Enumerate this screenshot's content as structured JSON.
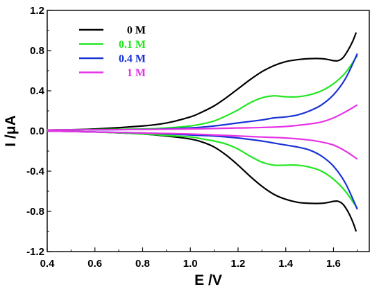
{
  "chart_data": {
    "type": "line",
    "title": "",
    "xlabel": "E /V",
    "ylabel": "I /μA",
    "xlim": [
      0.4,
      1.75
    ],
    "ylim": [
      -1.2,
      1.2
    ],
    "xticks": [
      0.4,
      0.6,
      0.8,
      1.0,
      1.2,
      1.4,
      1.6
    ],
    "xtick_labels": [
      "0.4",
      "0.6",
      "0.8",
      "1.0",
      "1.2",
      "1.4",
      "1.6"
    ],
    "yticks": [
      -1.2,
      -0.8,
      -0.4,
      0.0,
      0.4,
      0.8,
      1.2
    ],
    "ytick_labels": [
      "-1.2",
      "-0.8",
      "-0.4",
      "0.0",
      "0.4",
      "0.8",
      "1.2"
    ],
    "grid": false,
    "legend_position": "top-left",
    "series": [
      {
        "name": "0 M",
        "color": "#000000",
        "forward": [
          [
            0.4,
            0.01
          ],
          [
            0.6,
            0.02
          ],
          [
            0.8,
            0.05
          ],
          [
            0.9,
            0.08
          ],
          [
            1.0,
            0.14
          ],
          [
            1.05,
            0.19
          ],
          [
            1.1,
            0.25
          ],
          [
            1.15,
            0.33
          ],
          [
            1.2,
            0.42
          ],
          [
            1.25,
            0.51
          ],
          [
            1.3,
            0.59
          ],
          [
            1.35,
            0.65
          ],
          [
            1.4,
            0.69
          ],
          [
            1.45,
            0.71
          ],
          [
            1.5,
            0.72
          ],
          [
            1.55,
            0.72
          ],
          [
            1.58,
            0.71
          ],
          [
            1.6,
            0.7
          ],
          [
            1.62,
            0.7
          ],
          [
            1.64,
            0.73
          ],
          [
            1.66,
            0.8
          ],
          [
            1.68,
            0.89
          ],
          [
            1.695,
            0.98
          ]
        ],
        "reverse": [
          [
            1.695,
            -1.0
          ],
          [
            1.68,
            -0.9
          ],
          [
            1.66,
            -0.8
          ],
          [
            1.64,
            -0.73
          ],
          [
            1.62,
            -0.7
          ],
          [
            1.6,
            -0.7
          ],
          [
            1.58,
            -0.71
          ],
          [
            1.55,
            -0.72
          ],
          [
            1.5,
            -0.72
          ],
          [
            1.45,
            -0.71
          ],
          [
            1.4,
            -0.68
          ],
          [
            1.35,
            -0.63
          ],
          [
            1.3,
            -0.55
          ],
          [
            1.25,
            -0.45
          ],
          [
            1.2,
            -0.34
          ],
          [
            1.15,
            -0.24
          ],
          [
            1.1,
            -0.16
          ],
          [
            1.05,
            -0.11
          ],
          [
            1.0,
            -0.08
          ],
          [
            0.9,
            -0.05
          ],
          [
            0.8,
            -0.03
          ],
          [
            0.6,
            -0.01
          ],
          [
            0.4,
            0.0
          ]
        ]
      },
      {
        "name": "0.1 M",
        "color": "#22e622",
        "forward": [
          [
            0.4,
            0.01
          ],
          [
            0.6,
            0.015
          ],
          [
            0.8,
            0.02
          ],
          [
            0.9,
            0.03
          ],
          [
            1.0,
            0.05
          ],
          [
            1.05,
            0.07
          ],
          [
            1.1,
            0.1
          ],
          [
            1.15,
            0.15
          ],
          [
            1.2,
            0.21
          ],
          [
            1.25,
            0.28
          ],
          [
            1.3,
            0.33
          ],
          [
            1.35,
            0.35
          ],
          [
            1.4,
            0.34
          ],
          [
            1.45,
            0.34
          ],
          [
            1.5,
            0.36
          ],
          [
            1.55,
            0.4
          ],
          [
            1.6,
            0.47
          ],
          [
            1.65,
            0.58
          ],
          [
            1.7,
            0.75
          ]
        ],
        "reverse": [
          [
            1.7,
            -0.77
          ],
          [
            1.65,
            -0.6
          ],
          [
            1.6,
            -0.48
          ],
          [
            1.55,
            -0.4
          ],
          [
            1.5,
            -0.36
          ],
          [
            1.45,
            -0.34
          ],
          [
            1.4,
            -0.34
          ],
          [
            1.35,
            -0.34
          ],
          [
            1.3,
            -0.31
          ],
          [
            1.25,
            -0.25
          ],
          [
            1.2,
            -0.18
          ],
          [
            1.15,
            -0.13
          ],
          [
            1.1,
            -0.1
          ],
          [
            1.05,
            -0.08
          ],
          [
            1.0,
            -0.06
          ],
          [
            0.8,
            -0.03
          ],
          [
            0.6,
            -0.01
          ],
          [
            0.4,
            0.0
          ]
        ]
      },
      {
        "name": "0.4 M",
        "color": "#1a33d6",
        "forward": [
          [
            0.4,
            0.01
          ],
          [
            0.8,
            0.015
          ],
          [
            1.0,
            0.03
          ],
          [
            1.1,
            0.05
          ],
          [
            1.2,
            0.08
          ],
          [
            1.3,
            0.11
          ],
          [
            1.35,
            0.13
          ],
          [
            1.4,
            0.14
          ],
          [
            1.45,
            0.16
          ],
          [
            1.5,
            0.2
          ],
          [
            1.55,
            0.26
          ],
          [
            1.6,
            0.36
          ],
          [
            1.65,
            0.52
          ],
          [
            1.7,
            0.77
          ]
        ],
        "reverse": [
          [
            1.7,
            -0.78
          ],
          [
            1.65,
            -0.52
          ],
          [
            1.6,
            -0.35
          ],
          [
            1.55,
            -0.25
          ],
          [
            1.5,
            -0.19
          ],
          [
            1.45,
            -0.16
          ],
          [
            1.4,
            -0.14
          ],
          [
            1.35,
            -0.12
          ],
          [
            1.3,
            -0.1
          ],
          [
            1.2,
            -0.07
          ],
          [
            1.1,
            -0.05
          ],
          [
            1.0,
            -0.04
          ],
          [
            0.8,
            -0.02
          ],
          [
            0.6,
            -0.01
          ],
          [
            0.4,
            0.0
          ]
        ]
      },
      {
        "name": "1 M",
        "color": "#e633e6",
        "forward": [
          [
            0.4,
            0.01
          ],
          [
            0.8,
            0.015
          ],
          [
            1.0,
            0.02
          ],
          [
            1.2,
            0.03
          ],
          [
            1.3,
            0.035
          ],
          [
            1.4,
            0.045
          ],
          [
            1.5,
            0.07
          ],
          [
            1.55,
            0.09
          ],
          [
            1.6,
            0.13
          ],
          [
            1.65,
            0.19
          ],
          [
            1.7,
            0.26
          ]
        ],
        "reverse": [
          [
            1.7,
            -0.28
          ],
          [
            1.65,
            -0.2
          ],
          [
            1.6,
            -0.14
          ],
          [
            1.55,
            -0.11
          ],
          [
            1.5,
            -0.09
          ],
          [
            1.4,
            -0.07
          ],
          [
            1.3,
            -0.06
          ],
          [
            1.2,
            -0.05
          ],
          [
            1.0,
            -0.03
          ],
          [
            0.8,
            -0.02
          ],
          [
            0.4,
            0.0
          ]
        ]
      }
    ]
  }
}
